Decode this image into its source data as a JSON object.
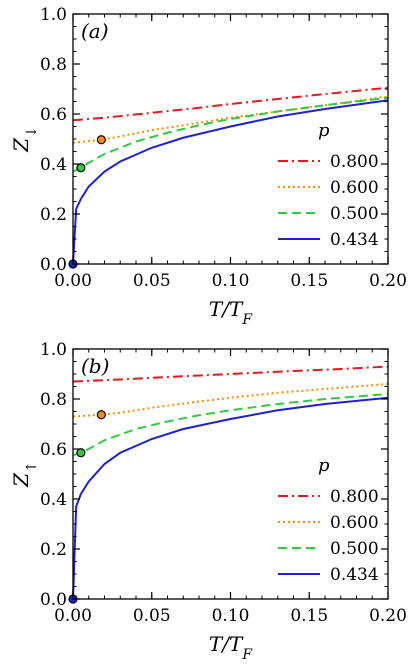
{
  "chart_data": [
    {
      "type": "line",
      "panel_label": "(a)",
      "xlabel": "T/T_F",
      "ylabel": "Z_↓",
      "xlim": [
        0,
        0.2
      ],
      "ylim": [
        0,
        1.0
      ],
      "xticks": [
        "0.00",
        "0.05",
        "0.10",
        "0.15",
        "0.20"
      ],
      "yticks": [
        "0.0",
        "0.2",
        "0.4",
        "0.6",
        "0.8",
        "1.0"
      ],
      "legend_title": "p",
      "legend_position": "lower-right",
      "series": [
        {
          "name": "0.800",
          "color": "#e41a1c",
          "dash": "dashdot",
          "x": [
            0.0,
            0.02,
            0.05,
            0.08,
            0.1,
            0.13,
            0.16,
            0.2
          ],
          "values": [
            0.575,
            0.585,
            0.605,
            0.625,
            0.64,
            0.66,
            0.68,
            0.705
          ],
          "marker": null
        },
        {
          "name": "0.600",
          "color": "#ff8c00",
          "dash": "dotted",
          "x": [
            0.0,
            0.018,
            0.03,
            0.05,
            0.08,
            0.1,
            0.13,
            0.16,
            0.2
          ],
          "values": [
            0.485,
            0.497,
            0.51,
            0.535,
            0.565,
            0.585,
            0.61,
            0.635,
            0.67
          ],
          "marker": {
            "x": 0.018,
            "y": 0.497
          }
        },
        {
          "name": "0.500",
          "color": "#2ecc40",
          "dash": "dashed",
          "x": [
            0.0,
            0.005,
            0.01,
            0.02,
            0.04,
            0.06,
            0.08,
            0.1,
            0.13,
            0.16,
            0.2
          ],
          "values": [
            0.37,
            0.385,
            0.405,
            0.44,
            0.49,
            0.525,
            0.555,
            0.58,
            0.61,
            0.635,
            0.665
          ],
          "marker": {
            "x": 0.005,
            "y": 0.385
          }
        },
        {
          "name": "0.434",
          "color": "#1f1fd6",
          "dash": "solid",
          "x": [
            0.0,
            0.002,
            0.005,
            0.01,
            0.02,
            0.03,
            0.05,
            0.07,
            0.1,
            0.13,
            0.16,
            0.2
          ],
          "values": [
            0.0,
            0.22,
            0.26,
            0.31,
            0.37,
            0.41,
            0.465,
            0.505,
            0.55,
            0.59,
            0.62,
            0.655
          ],
          "marker": {
            "x": 0.0,
            "y": 0.0
          }
        }
      ]
    },
    {
      "type": "line",
      "panel_label": "(b)",
      "xlabel": "T/T_F",
      "ylabel": "Z_↑",
      "xlim": [
        0,
        0.2
      ],
      "ylim": [
        0,
        1.0
      ],
      "xticks": [
        "0.00",
        "0.05",
        "0.10",
        "0.15",
        "0.20"
      ],
      "yticks": [
        "0.0",
        "0.2",
        "0.4",
        "0.6",
        "0.8",
        "1.0"
      ],
      "legend_title": "p",
      "legend_position": "lower-right",
      "series": [
        {
          "name": "0.800",
          "color": "#e41a1c",
          "dash": "dashdot",
          "x": [
            0.0,
            0.03,
            0.06,
            0.1,
            0.14,
            0.17,
            0.2
          ],
          "values": [
            0.87,
            0.878,
            0.888,
            0.9,
            0.912,
            0.92,
            0.93
          ],
          "marker": null
        },
        {
          "name": "0.600",
          "color": "#ff8c00",
          "dash": "dotted",
          "x": [
            0.0,
            0.018,
            0.03,
            0.05,
            0.08,
            0.1,
            0.13,
            0.16,
            0.2
          ],
          "values": [
            0.73,
            0.737,
            0.745,
            0.765,
            0.79,
            0.805,
            0.825,
            0.84,
            0.86
          ],
          "marker": {
            "x": 0.018,
            "y": 0.737
          }
        },
        {
          "name": "0.500",
          "color": "#2ecc40",
          "dash": "dashed",
          "x": [
            0.0,
            0.005,
            0.01,
            0.02,
            0.04,
            0.06,
            0.08,
            0.1,
            0.13,
            0.16,
            0.2
          ],
          "values": [
            0.575,
            0.585,
            0.6,
            0.635,
            0.68,
            0.71,
            0.735,
            0.755,
            0.78,
            0.8,
            0.82
          ],
          "marker": {
            "x": 0.005,
            "y": 0.585
          }
        },
        {
          "name": "0.434",
          "color": "#1f1fd6",
          "dash": "solid",
          "x": [
            0.0,
            0.002,
            0.005,
            0.01,
            0.02,
            0.03,
            0.05,
            0.07,
            0.1,
            0.13,
            0.16,
            0.2
          ],
          "values": [
            0.0,
            0.37,
            0.42,
            0.47,
            0.54,
            0.585,
            0.64,
            0.68,
            0.72,
            0.755,
            0.78,
            0.805
          ],
          "marker": {
            "x": 0.0,
            "y": 0.0
          }
        }
      ]
    }
  ]
}
